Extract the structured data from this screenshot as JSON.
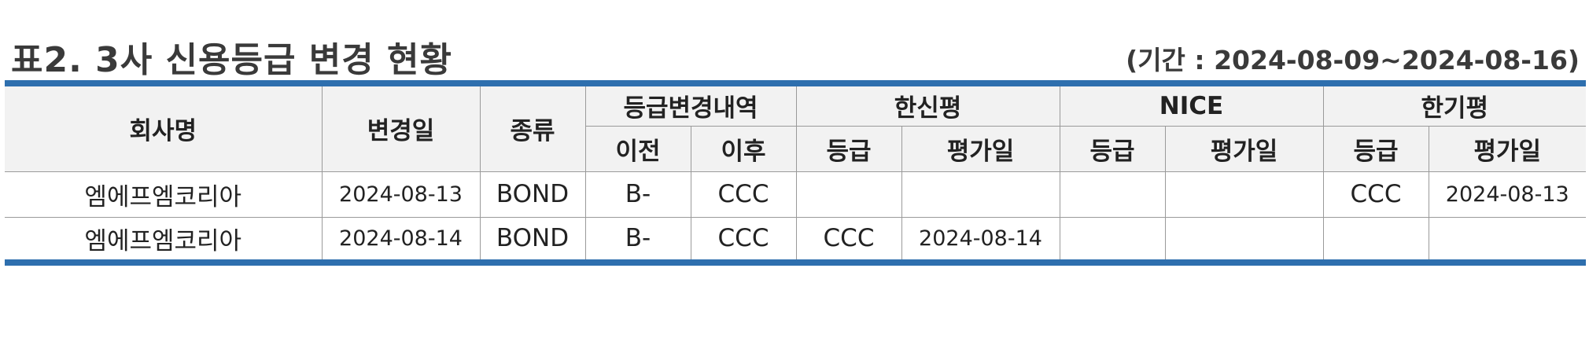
{
  "title": "표2. 3사 신용등급 변경 현황",
  "period": "(기간 : 2024-08-09~2024-08-16)",
  "accent_color": "#2e6fae",
  "headers": {
    "company": "회사명",
    "change_date": "변경일",
    "type": "종류",
    "grade_change": "등급변경내역",
    "before": "이전",
    "after": "이후",
    "kis": "한신평",
    "nice": "NICE",
    "kr": "한기평",
    "grade": "등급",
    "rating_date": "평가일"
  },
  "rows": [
    {
      "company": "엠에프엠코리아",
      "change_date": "2024-08-13",
      "type": "BOND",
      "before": "B-",
      "after": "CCC",
      "kis_grade": "",
      "kis_date": "",
      "nice_grade": "",
      "nice_date": "",
      "kr_grade": "CCC",
      "kr_date": "2024-08-13"
    },
    {
      "company": "엠에프엠코리아",
      "change_date": "2024-08-14",
      "type": "BOND",
      "before": "B-",
      "after": "CCC",
      "kis_grade": "CCC",
      "kis_date": "2024-08-14",
      "nice_grade": "",
      "nice_date": "",
      "kr_grade": "",
      "kr_date": ""
    }
  ]
}
